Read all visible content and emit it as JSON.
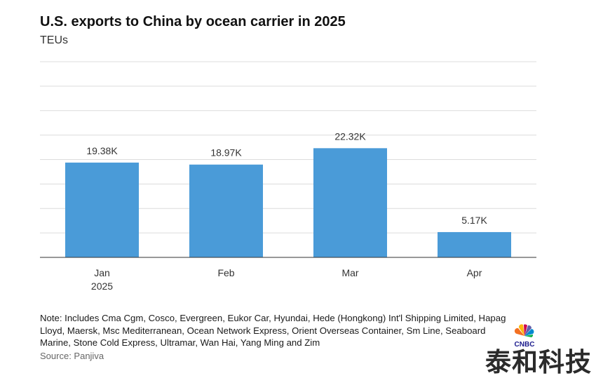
{
  "header": {
    "title": "U.S. exports to China by ocean carrier in 2025",
    "subtitle": "TEUs"
  },
  "chart_data": {
    "type": "bar",
    "title": "U.S. exports to China by ocean carrier in 2025",
    "ylabel": "TEUs",
    "categories": [
      "Jan",
      "Feb",
      "Mar",
      "Apr"
    ],
    "category_sublabels": [
      "2025",
      "",
      "",
      ""
    ],
    "values": [
      19380,
      18970,
      22320,
      5170
    ],
    "data_labels": [
      "19.38K",
      "18.97K",
      "22.32K",
      "5.17K"
    ],
    "ylim": [
      0,
      40000
    ],
    "grid": true,
    "bar_color": "#4a9bd8"
  },
  "footer": {
    "note": "Note: Includes Cma Cgm, Cosco, Evergreen, Eukor Car, Hyundai, Hede (Hongkong) Int'l Shipping Limited, Hapag Lloyd, Maersk, Msc Mediterranean, Ocean Network Express, Orient Overseas Container, Sm Line, Seaboard Marine, Stone Cold Express, Ultramar, Wan Hai, Yang Ming and Zim",
    "source": "Source: Panjiva",
    "logo_text": "CNBC",
    "watermark": "泰和科技"
  }
}
